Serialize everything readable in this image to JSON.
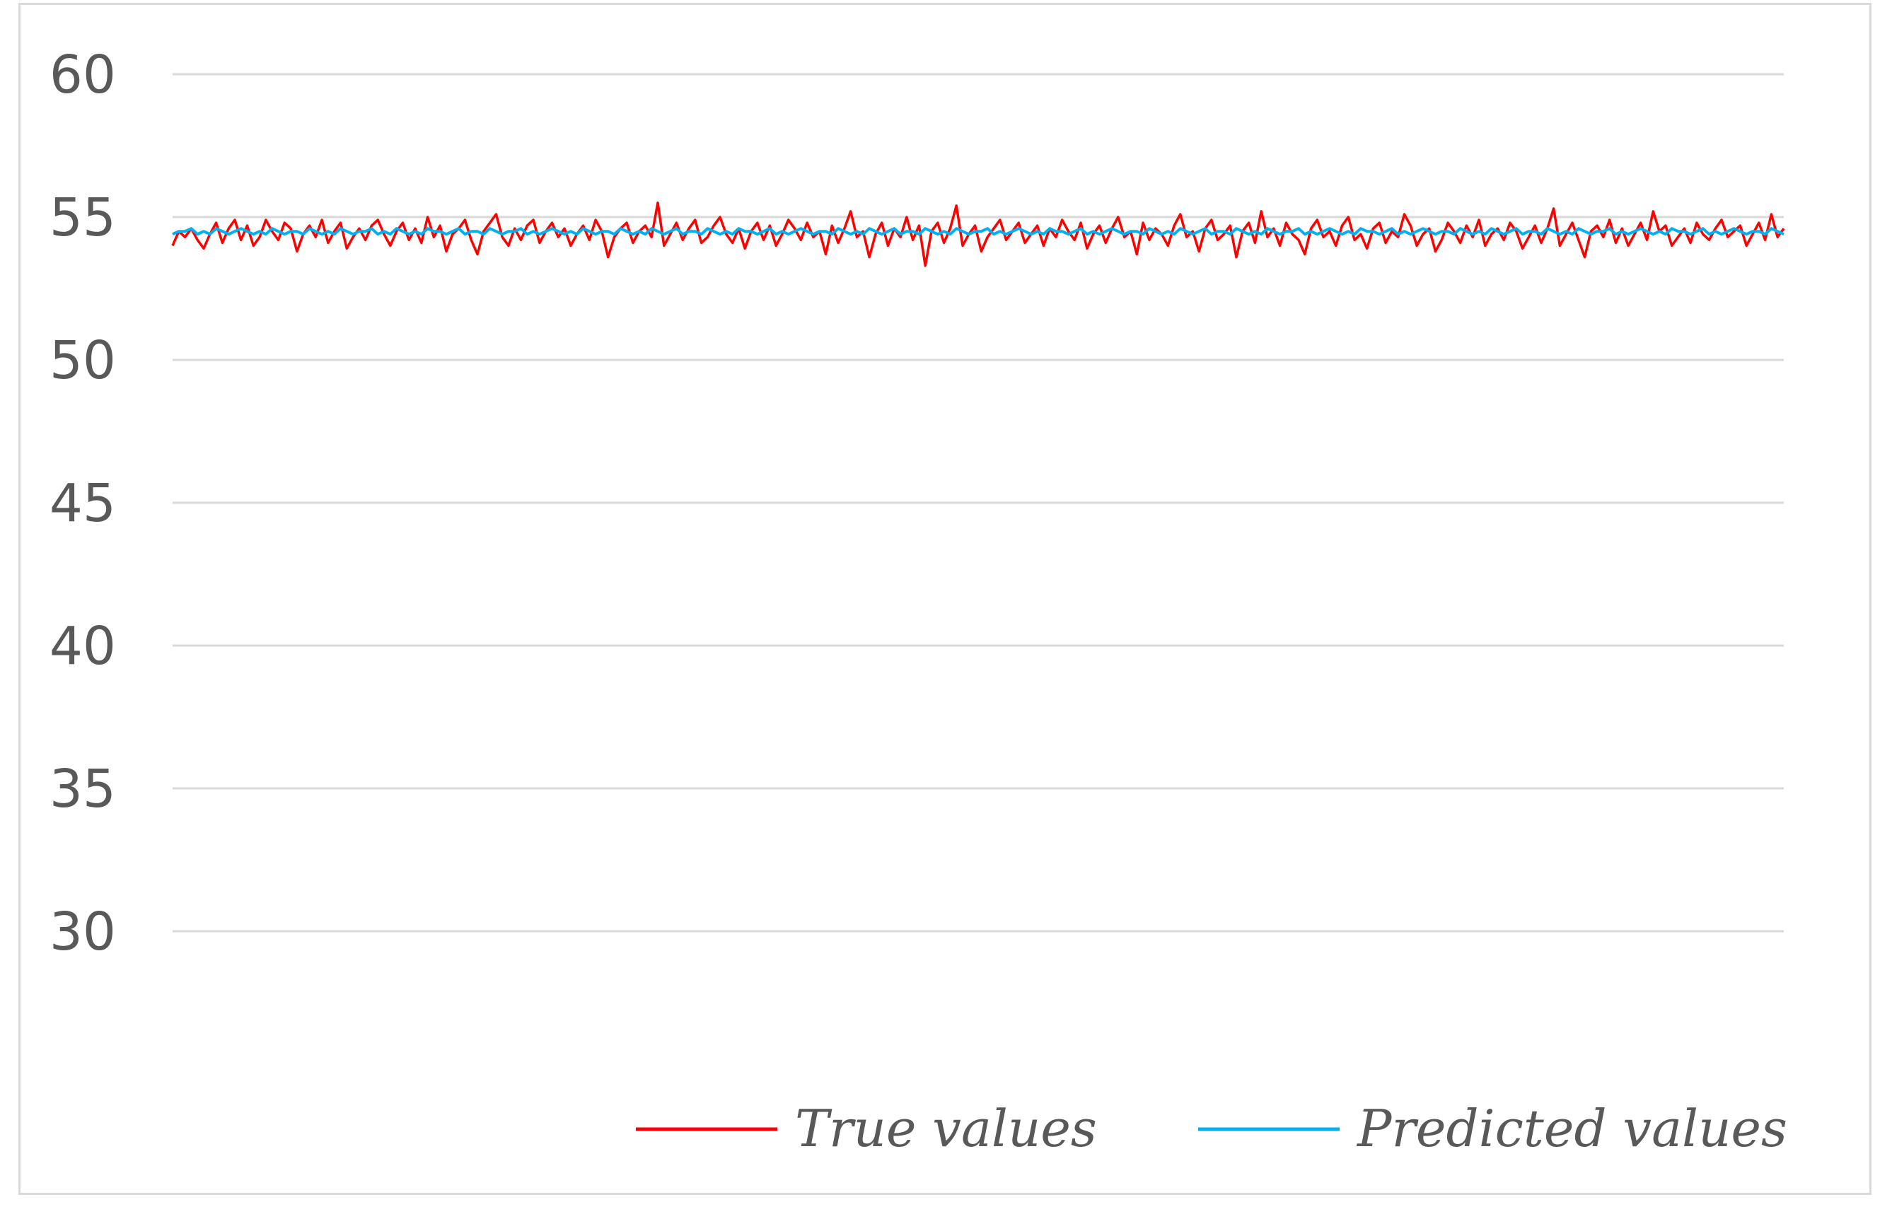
{
  "chart_data": {
    "type": "line",
    "title": "",
    "xlabel": "",
    "ylabel": "",
    "ylim": [
      25,
      60
    ],
    "yticks": [
      60,
      55,
      50,
      45,
      40,
      35,
      30
    ],
    "grid": true,
    "legend_position": "bottom-right",
    "x_count": 260,
    "series": [
      {
        "name": "True values",
        "color": "#ff0000",
        "values": [
          54.0,
          54.5,
          54.3,
          54.6,
          54.2,
          53.9,
          54.4,
          54.8,
          54.1,
          54.6,
          54.9,
          54.2,
          54.7,
          54.0,
          54.3,
          54.9,
          54.5,
          54.2,
          54.8,
          54.6,
          53.8,
          54.4,
          54.7,
          54.3,
          54.9,
          54.1,
          54.5,
          54.8,
          53.9,
          54.3,
          54.6,
          54.2,
          54.7,
          54.9,
          54.4,
          54.0,
          54.5,
          54.8,
          54.2,
          54.6,
          54.1,
          55.0,
          54.3,
          54.7,
          53.8,
          54.4,
          54.6,
          54.9,
          54.2,
          53.7,
          54.5,
          54.8,
          55.1,
          54.3,
          54.0,
          54.6,
          54.2,
          54.7,
          54.9,
          54.1,
          54.5,
          54.8,
          54.3,
          54.6,
          54.0,
          54.4,
          54.7,
          54.2,
          54.9,
          54.5,
          53.6,
          54.3,
          54.6,
          54.8,
          54.1,
          54.5,
          54.7,
          54.3,
          55.5,
          54.0,
          54.4,
          54.8,
          54.2,
          54.6,
          54.9,
          54.1,
          54.3,
          54.7,
          55.0,
          54.4,
          54.1,
          54.6,
          53.9,
          54.5,
          54.8,
          54.2,
          54.7,
          54.0,
          54.4,
          54.9,
          54.6,
          54.2,
          54.8,
          54.3,
          54.5,
          53.7,
          54.7,
          54.1,
          54.6,
          55.2,
          54.3,
          54.5,
          53.6,
          54.4,
          54.8,
          54.0,
          54.6,
          54.3,
          55.0,
          54.2,
          54.7,
          53.3,
          54.5,
          54.8,
          54.1,
          54.6,
          55.4,
          54.0,
          54.4,
          54.7,
          53.8,
          54.3,
          54.6,
          54.9,
          54.2,
          54.5,
          54.8,
          54.1,
          54.4,
          54.7,
          54.0,
          54.6,
          54.3,
          54.9,
          54.5,
          54.2,
          54.8,
          53.9,
          54.4,
          54.7,
          54.1,
          54.6,
          55.0,
          54.3,
          54.5,
          53.7,
          54.8,
          54.2,
          54.6,
          54.4,
          54.0,
          54.7,
          55.1,
          54.3,
          54.5,
          53.8,
          54.6,
          54.9,
          54.2,
          54.4,
          54.7,
          53.6,
          54.5,
          54.8,
          54.1,
          55.2,
          54.3,
          54.6,
          54.0,
          54.8,
          54.4,
          54.2,
          53.7,
          54.6,
          54.9,
          54.3,
          54.5,
          54.0,
          54.7,
          55.0,
          54.2,
          54.4,
          53.9,
          54.6,
          54.8,
          54.1,
          54.5,
          54.3,
          55.1,
          54.7,
          54.0,
          54.4,
          54.6,
          53.8,
          54.2,
          54.8,
          54.5,
          54.1,
          54.7,
          54.3,
          54.9,
          54.0,
          54.4,
          54.6,
          54.2,
          54.8,
          54.5,
          53.9,
          54.3,
          54.7,
          54.1,
          54.6,
          55.3,
          54.0,
          54.4,
          54.8,
          54.2,
          53.6,
          54.5,
          54.7,
          54.3,
          54.9,
          54.1,
          54.6,
          54.0,
          54.4,
          54.8,
          54.2,
          55.2,
          54.5,
          54.7,
          54.0,
          54.3,
          54.6,
          54.1,
          54.8,
          54.4,
          54.2,
          54.6,
          54.9,
          54.3,
          54.5,
          54.7,
          54.0,
          54.4,
          54.8,
          54.2,
          55.1,
          54.3,
          54.6,
          54.0,
          54.5,
          54.8,
          54.2,
          54.9,
          54.4,
          55.2,
          54.1,
          54.6
        ],
        "values_note": ""
      },
      {
        "name": "Predicted values",
        "color": "#00b0f0",
        "values": [
          54.4,
          54.5,
          54.5,
          54.6,
          54.4,
          54.5,
          54.4,
          54.6,
          54.5,
          54.4,
          54.5,
          54.6,
          54.5,
          54.4,
          54.5,
          54.4,
          54.6,
          54.5,
          54.4,
          54.5,
          54.5,
          54.4,
          54.6,
          54.5,
          54.4,
          54.5,
          54.4,
          54.6,
          54.5,
          54.4,
          54.5,
          54.5,
          54.6,
          54.4,
          54.5,
          54.4,
          54.6,
          54.5,
          54.4,
          54.5,
          54.4,
          54.6,
          54.5,
          54.5,
          54.4,
          54.5,
          54.6,
          54.4,
          54.5,
          54.5,
          54.4,
          54.6,
          54.5,
          54.4,
          54.5,
          54.5,
          54.6,
          54.4,
          54.5,
          54.4,
          54.5,
          54.6,
          54.5,
          54.4,
          54.5,
          54.4,
          54.6,
          54.5,
          54.4,
          54.5,
          54.5,
          54.4,
          54.6,
          54.5,
          54.4,
          54.5,
          54.4,
          54.6,
          54.5,
          54.4,
          54.5,
          54.6,
          54.4,
          54.5,
          54.5,
          54.4,
          54.6,
          54.5,
          54.4,
          54.5,
          54.4,
          54.6,
          54.5,
          54.5,
          54.4,
          54.5,
          54.6,
          54.4,
          54.5,
          54.4,
          54.5,
          54.6,
          54.5,
          54.4,
          54.5,
          54.5,
          54.4,
          54.6,
          54.5,
          54.4,
          54.5,
          54.4,
          54.6,
          54.5,
          54.4,
          54.5,
          54.6,
          54.4,
          54.5,
          54.5,
          54.4,
          54.6,
          54.5,
          54.4,
          54.5,
          54.4,
          54.6,
          54.5,
          54.4,
          54.5,
          54.5,
          54.6,
          54.4,
          54.5,
          54.4,
          54.5,
          54.6,
          54.5,
          54.4,
          54.5,
          54.4,
          54.6,
          54.5,
          54.5,
          54.4,
          54.5,
          54.6,
          54.4,
          54.5,
          54.4,
          54.5,
          54.6,
          54.5,
          54.4,
          54.5,
          54.5,
          54.4,
          54.6,
          54.5,
          54.4,
          54.5,
          54.4,
          54.6,
          54.5,
          54.4,
          54.5,
          54.6,
          54.4,
          54.5,
          54.5,
          54.4,
          54.6,
          54.5,
          54.4,
          54.5,
          54.4,
          54.6,
          54.5,
          54.4,
          54.5,
          54.5,
          54.6,
          54.4,
          54.5,
          54.4,
          54.5,
          54.6,
          54.5,
          54.4,
          54.5,
          54.4,
          54.6,
          54.5,
          54.5,
          54.4,
          54.5,
          54.6,
          54.4,
          54.5,
          54.4,
          54.5,
          54.6,
          54.5,
          54.4,
          54.5,
          54.5,
          54.4,
          54.6,
          54.5,
          54.4,
          54.5,
          54.4,
          54.6,
          54.5,
          54.4,
          54.5,
          54.6,
          54.4,
          54.5,
          54.5,
          54.4,
          54.6,
          54.5,
          54.4,
          54.5,
          54.4,
          54.6,
          54.5,
          54.4,
          54.5,
          54.5,
          54.6,
          54.4,
          54.5,
          54.4,
          54.5,
          54.6,
          54.5,
          54.4,
          54.5,
          54.4,
          54.6,
          54.5,
          54.5,
          54.4,
          54.5,
          54.6,
          54.4,
          54.5,
          54.4,
          54.5,
          54.6,
          54.5,
          54.4,
          54.5,
          54.5,
          54.4,
          54.6,
          54.5,
          54.4
        ]
      }
    ]
  }
}
